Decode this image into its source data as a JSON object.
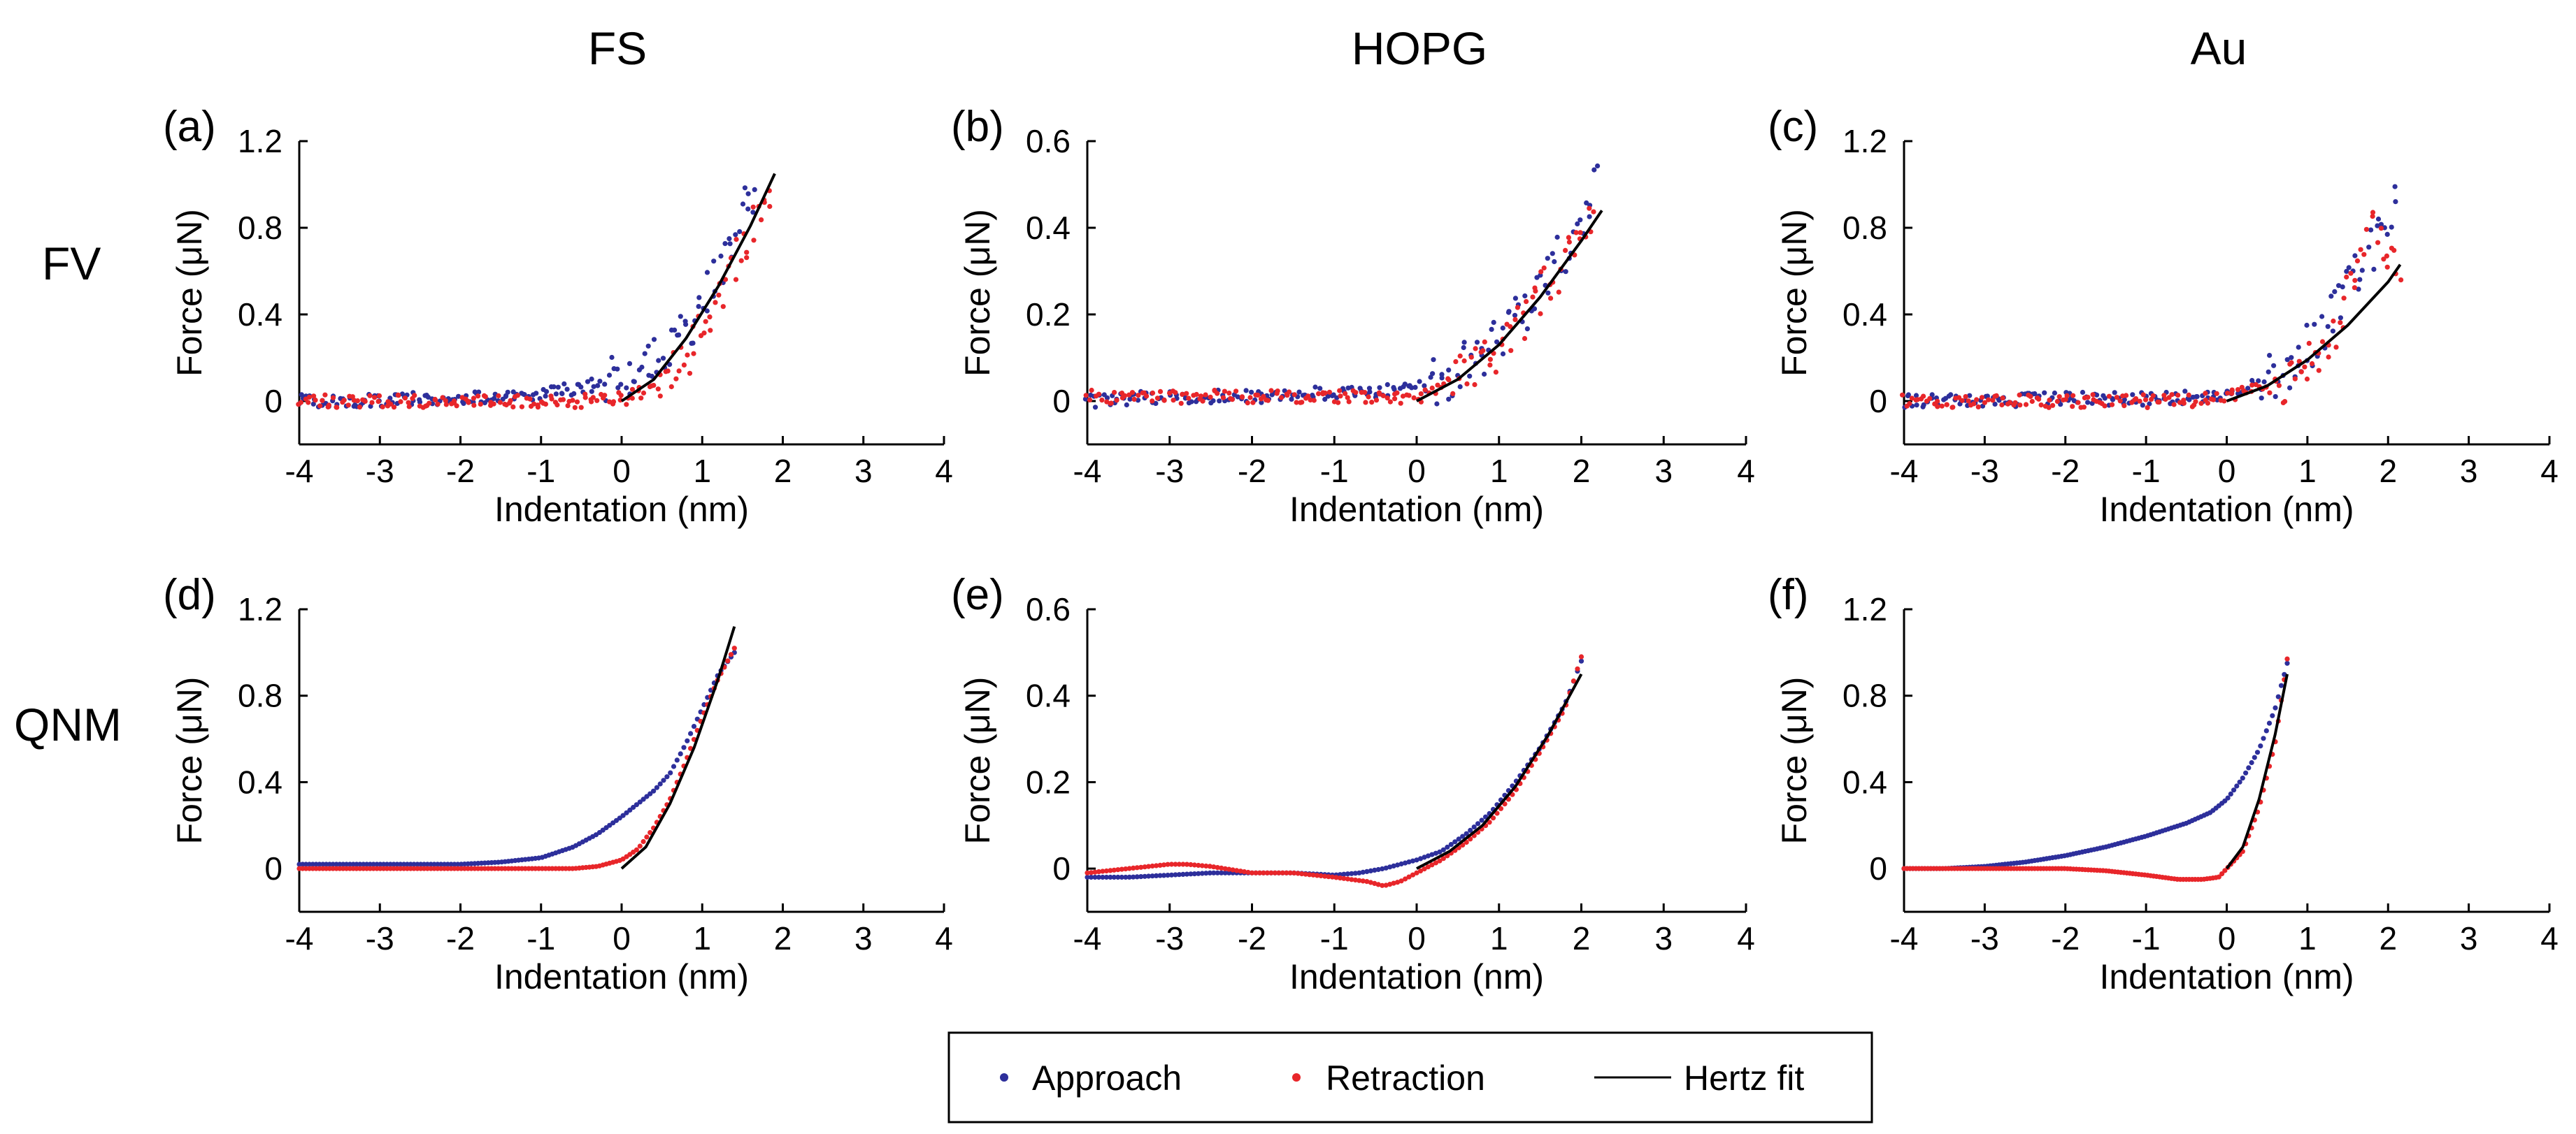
{
  "figure": {
    "columns": [
      "FS",
      "HOPG",
      "Au"
    ],
    "rows": [
      "FV",
      "QNM"
    ],
    "legend": {
      "approach": "Approach",
      "retraction": "Retraction",
      "hertz": "Hertz fit"
    },
    "colors": {
      "approach": "#2d2f9b",
      "retraction": "#e8262a",
      "hertz": "#000000",
      "axes": "#000000"
    }
  },
  "chart_data": [
    {
      "id": "a",
      "label": "(a)",
      "column": "FS",
      "row": "FV",
      "type": "scatter",
      "xlabel": "Indentation (nm)",
      "ylabel": "Force (μN)",
      "xlim": [
        -4,
        4
      ],
      "ylim": [
        -0.2,
        1.2
      ],
      "xticks": [
        "-4",
        "-3",
        "-2",
        "-1",
        "0",
        "1",
        "2",
        "3",
        "4"
      ],
      "yticks": [
        "0",
        "0.4",
        "0.8",
        "1.2"
      ],
      "series": [
        {
          "name": "Approach",
          "x": [
            -4.0,
            -3.5,
            -3.0,
            -2.5,
            -2.0,
            -1.5,
            -1.0,
            -0.5,
            0.0,
            0.3,
            0.6,
            0.9,
            1.1,
            1.3,
            1.5,
            1.65
          ],
          "y": [
            0.0,
            0.0,
            0.0,
            0.01,
            0.01,
            0.02,
            0.04,
            0.06,
            0.1,
            0.16,
            0.24,
            0.38,
            0.52,
            0.7,
            0.88,
            1.0
          ]
        },
        {
          "name": "Retraction",
          "x": [
            -4.0,
            -3.0,
            -2.0,
            -1.0,
            -0.5,
            0.0,
            0.3,
            0.6,
            0.9,
            1.1,
            1.3,
            1.5,
            1.7,
            1.85
          ],
          "y": [
            0.0,
            0.0,
            0.0,
            0.0,
            0.0,
            0.01,
            0.04,
            0.12,
            0.26,
            0.4,
            0.56,
            0.72,
            0.86,
            0.95
          ]
        },
        {
          "name": "Hertz fit",
          "x": [
            0.0,
            0.4,
            0.8,
            1.2,
            1.6,
            1.9
          ],
          "y": [
            0.0,
            0.1,
            0.29,
            0.53,
            0.81,
            1.05
          ]
        }
      ]
    },
    {
      "id": "b",
      "label": "(b)",
      "column": "HOPG",
      "row": "FV",
      "type": "scatter",
      "xlabel": "Indentation (nm)",
      "ylabel": "Force (μN)",
      "xlim": [
        -4,
        4
      ],
      "ylim": [
        -0.1,
        0.6
      ],
      "xticks": [
        "-4",
        "-3",
        "-2",
        "-1",
        "0",
        "1",
        "2",
        "3",
        "4"
      ],
      "yticks": [
        "0",
        "0.2",
        "0.4",
        "0.6"
      ],
      "series": [
        {
          "name": "Approach",
          "x": [
            -4.0,
            -3.0,
            -2.0,
            -1.0,
            -0.5,
            0.0,
            0.4,
            0.8,
            1.2,
            1.5,
            1.8,
            2.0,
            2.2
          ],
          "y": [
            0.0,
            0.01,
            0.01,
            0.02,
            0.02,
            0.03,
            0.06,
            0.11,
            0.18,
            0.26,
            0.35,
            0.42,
            0.5
          ]
        },
        {
          "name": "Retraction",
          "x": [
            -4.0,
            -3.0,
            -2.0,
            -1.0,
            -0.5,
            0.0,
            0.4,
            0.8,
            1.2,
            1.5,
            1.8,
            2.0,
            2.15
          ],
          "y": [
            0.01,
            0.01,
            0.01,
            0.01,
            0.01,
            0.01,
            0.04,
            0.09,
            0.16,
            0.24,
            0.33,
            0.4,
            0.46
          ]
        },
        {
          "name": "Hertz fit",
          "x": [
            0.0,
            0.5,
            1.0,
            1.5,
            2.0,
            2.25
          ],
          "y": [
            0.0,
            0.05,
            0.13,
            0.24,
            0.37,
            0.44
          ]
        }
      ]
    },
    {
      "id": "c",
      "label": "(c)",
      "column": "Au",
      "row": "FV",
      "type": "scatter",
      "xlabel": "Indentation (nm)",
      "ylabel": "Force (μN)",
      "xlim": [
        -4,
        4
      ],
      "ylim": [
        -0.2,
        1.2
      ],
      "xticks": [
        "-4",
        "-3",
        "-2",
        "-1",
        "0",
        "1",
        "2",
        "3",
        "4"
      ],
      "yticks": [
        "0",
        "0.4",
        "0.8",
        "1.2"
      ],
      "series": [
        {
          "name": "Approach",
          "x": [
            -4.0,
            -3.0,
            -2.0,
            -1.0,
            -0.5,
            0.0,
            0.4,
            0.8,
            1.1,
            1.4,
            1.7,
            1.9,
            2.1
          ],
          "y": [
            0.0,
            0.0,
            0.01,
            0.01,
            0.02,
            0.04,
            0.08,
            0.16,
            0.28,
            0.45,
            0.62,
            0.78,
            0.95
          ]
        },
        {
          "name": "Retraction",
          "x": [
            -4.0,
            -3.0,
            -2.0,
            -1.0,
            -0.5,
            0.0,
            0.4,
            0.8,
            1.1,
            1.4,
            1.6,
            1.8,
            2.0,
            2.15
          ],
          "y": [
            0.0,
            0.0,
            0.0,
            0.0,
            0.0,
            0.02,
            0.05,
            0.1,
            0.2,
            0.38,
            0.6,
            0.85,
            0.7,
            0.6
          ]
        },
        {
          "name": "Hertz fit",
          "x": [
            0.0,
            0.5,
            1.0,
            1.5,
            2.0,
            2.15
          ],
          "y": [
            0.0,
            0.07,
            0.19,
            0.35,
            0.55,
            0.63
          ]
        }
      ]
    },
    {
      "id": "d",
      "label": "(d)",
      "column": "FS",
      "row": "QNM",
      "type": "line",
      "xlabel": "Indentation (nm)",
      "ylabel": "Force (μN)",
      "xlim": [
        -4,
        4
      ],
      "ylim": [
        -0.2,
        1.2
      ],
      "xticks": [
        "-4",
        "-3",
        "-2",
        "-1",
        "0",
        "1",
        "2",
        "3",
        "4"
      ],
      "yticks": [
        "0",
        "0.4",
        "0.8",
        "1.2"
      ],
      "series": [
        {
          "name": "Approach",
          "x": [
            -4.0,
            -3.5,
            -3.0,
            -2.5,
            -2.0,
            -1.5,
            -1.0,
            -0.6,
            -0.3,
            0.0,
            0.2,
            0.4,
            0.6,
            0.8,
            1.0,
            1.2,
            1.4
          ],
          "y": [
            0.02,
            0.02,
            0.02,
            0.02,
            0.02,
            0.03,
            0.05,
            0.1,
            0.16,
            0.24,
            0.3,
            0.36,
            0.44,
            0.58,
            0.74,
            0.9,
            1.0
          ]
        },
        {
          "name": "Retraction",
          "x": [
            -4.0,
            -3.5,
            -3.0,
            -2.5,
            -2.0,
            -1.5,
            -1.0,
            -0.6,
            -0.3,
            0.0,
            0.2,
            0.4,
            0.6,
            0.8,
            1.0,
            1.2,
            1.4
          ],
          "y": [
            0.0,
            0.0,
            0.0,
            0.0,
            0.0,
            0.0,
            0.0,
            0.0,
            0.01,
            0.04,
            0.09,
            0.19,
            0.32,
            0.5,
            0.7,
            0.88,
            1.02
          ]
        },
        {
          "name": "Hertz fit",
          "x": [
            0.0,
            0.3,
            0.6,
            0.9,
            1.2,
            1.4
          ],
          "y": [
            0.0,
            0.1,
            0.3,
            0.56,
            0.88,
            1.12
          ]
        }
      ]
    },
    {
      "id": "e",
      "label": "(e)",
      "column": "HOPG",
      "row": "QNM",
      "type": "line",
      "xlabel": "Indentation (nm)",
      "ylabel": "Force (μN)",
      "xlim": [
        -4,
        4
      ],
      "ylim": [
        -0.1,
        0.6
      ],
      "xticks": [
        "-4",
        "-3",
        "-2",
        "-1",
        "0",
        "1",
        "2",
        "3",
        "4"
      ],
      "yticks": [
        "0",
        "0.2",
        "0.4",
        "0.6"
      ],
      "series": [
        {
          "name": "Approach",
          "x": [
            -4.0,
            -3.5,
            -3.0,
            -2.5,
            -2.0,
            -1.5,
            -1.0,
            -0.7,
            -0.4,
            -0.2,
            0.0,
            0.3,
            0.6,
            0.9,
            1.2,
            1.5,
            1.8,
            2.0
          ],
          "y": [
            -0.02,
            -0.02,
            -0.015,
            -0.01,
            -0.01,
            -0.01,
            -0.015,
            -0.01,
            0.0,
            0.01,
            0.02,
            0.04,
            0.08,
            0.13,
            0.2,
            0.28,
            0.38,
            0.48
          ]
        },
        {
          "name": "Retraction",
          "x": [
            -4.0,
            -3.5,
            -3.0,
            -2.8,
            -2.5,
            -2.0,
            -1.5,
            -1.0,
            -0.6,
            -0.4,
            -0.2,
            0.0,
            0.3,
            0.6,
            0.9,
            1.2,
            1.5,
            1.8,
            2.0
          ],
          "y": [
            -0.01,
            0.0,
            0.01,
            0.01,
            0.005,
            -0.01,
            -0.01,
            -0.02,
            -0.03,
            -0.04,
            -0.03,
            -0.01,
            0.02,
            0.06,
            0.11,
            0.18,
            0.27,
            0.37,
            0.49
          ]
        },
        {
          "name": "Hertz fit",
          "x": [
            0.0,
            0.4,
            0.8,
            1.2,
            1.6,
            2.0
          ],
          "y": [
            0.0,
            0.04,
            0.1,
            0.19,
            0.31,
            0.45
          ]
        }
      ]
    },
    {
      "id": "f",
      "label": "(f)",
      "column": "Au",
      "row": "QNM",
      "type": "line",
      "xlabel": "Indentation (nm)",
      "ylabel": "Force (μN)",
      "xlim": [
        -4,
        4
      ],
      "ylim": [
        -0.2,
        1.2
      ],
      "xticks": [
        "-4",
        "-3",
        "-2",
        "-1",
        "0",
        "1",
        "2",
        "3",
        "4"
      ],
      "yticks": [
        "0",
        "0.4",
        "0.8",
        "1.2"
      ],
      "series": [
        {
          "name": "Approach",
          "x": [
            -4.0,
            -3.5,
            -3.0,
            -2.5,
            -2.0,
            -1.5,
            -1.0,
            -0.5,
            -0.2,
            0.0,
            0.2,
            0.4,
            0.6,
            0.75
          ],
          "y": [
            0.0,
            0.0,
            0.01,
            0.03,
            0.06,
            0.1,
            0.15,
            0.21,
            0.26,
            0.32,
            0.42,
            0.55,
            0.74,
            0.95
          ]
        },
        {
          "name": "Retraction",
          "x": [
            -4.0,
            -3.5,
            -3.0,
            -2.5,
            -2.0,
            -1.5,
            -1.0,
            -0.6,
            -0.3,
            -0.1,
            0.0,
            0.2,
            0.4,
            0.6,
            0.75
          ],
          "y": [
            0.0,
            0.0,
            0.0,
            0.0,
            0.0,
            -0.01,
            -0.03,
            -0.05,
            -0.05,
            -0.04,
            0.0,
            0.08,
            0.28,
            0.58,
            0.97
          ]
        },
        {
          "name": "Hertz fit",
          "x": [
            0.0,
            0.2,
            0.4,
            0.6,
            0.75
          ],
          "y": [
            0.0,
            0.1,
            0.32,
            0.62,
            0.9
          ]
        }
      ]
    }
  ]
}
